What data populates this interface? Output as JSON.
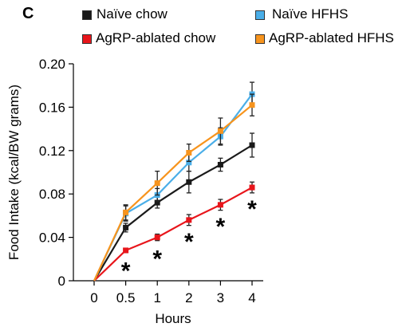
{
  "panel_label": "C",
  "chart_data": {
    "type": "line",
    "title": "",
    "xlabel": "Hours",
    "ylabel": "Food Intake (kcal/BW grams)",
    "categories": [
      "0",
      "0.5",
      "1",
      "2",
      "3",
      "4"
    ],
    "ylim": [
      0,
      0.2
    ],
    "yticks": [
      0,
      0.04,
      0.08,
      0.12,
      0.16,
      0.2
    ],
    "ytick_labels": [
      "0",
      "0.04",
      "0.08",
      "0.12",
      "0.16",
      "0.20"
    ],
    "grid": false,
    "legend_position": "top",
    "series": [
      {
        "name": "Naïve chow",
        "color": "#1a1a1a",
        "values": [
          0,
          0.049,
          0.072,
          0.091,
          0.107,
          0.125
        ],
        "errors": [
          0,
          0.004,
          0.005,
          0.01,
          0.006,
          0.011
        ]
      },
      {
        "name": "AgRP-ablated chow",
        "color": "#e8151b",
        "values": [
          0,
          0.028,
          0.04,
          0.056,
          0.07,
          0.086
        ],
        "errors": [
          0,
          0.002,
          0.003,
          0.005,
          0.005,
          0.005
        ]
      },
      {
        "name": "Naïve HFHS",
        "color": "#4aaee8",
        "values": [
          0,
          0.062,
          0.079,
          0.109,
          0.133,
          0.172
        ],
        "errors": [
          0,
          0.007,
          0.006,
          0.008,
          0.008,
          0.011
        ]
      },
      {
        "name": "AgRP-ablated HFHS",
        "color": "#f7941d",
        "values": [
          0,
          0.063,
          0.09,
          0.118,
          0.138,
          0.162
        ],
        "errors": [
          0,
          0.007,
          0.011,
          0.008,
          0.012,
          0.01
        ]
      }
    ],
    "annotations": [
      {
        "text": "*",
        "category": "0.5",
        "y": 0.012
      },
      {
        "text": "*",
        "category": "1",
        "y": 0.023
      },
      {
        "text": "*",
        "category": "2",
        "y": 0.039
      },
      {
        "text": "*",
        "category": "3",
        "y": 0.053
      },
      {
        "text": "*",
        "category": "4",
        "y": 0.069
      }
    ]
  }
}
